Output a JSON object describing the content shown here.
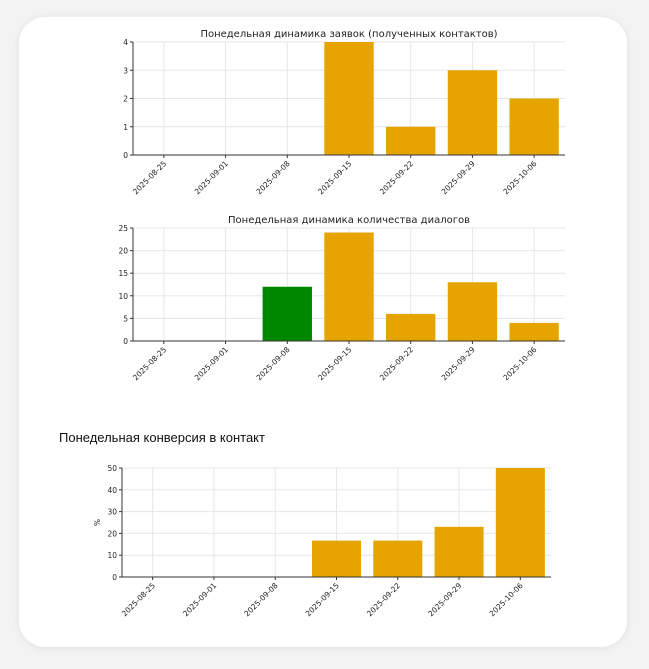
{
  "section_title": "Понедельная конверсия в контакт",
  "colors": {
    "bar": "#E6A400",
    "bar_highlight": "#008700"
  },
  "chart_data": [
    {
      "type": "bar",
      "title": "Понедельная динамика заявок (полученных контактов)",
      "categories": [
        "2025-08-25",
        "2025-09-01",
        "2025-09-08",
        "2025-09-15",
        "2025-09-22",
        "2025-09-29",
        "2025-10-06"
      ],
      "values": [
        0,
        0,
        0,
        4,
        1,
        3,
        2
      ],
      "ylim": [
        0,
        4
      ],
      "yticks": [
        0,
        1,
        2,
        3,
        4
      ],
      "xlabel": "",
      "ylabel": "",
      "grid": true
    },
    {
      "type": "bar",
      "title": "Понедельная динамика количества диалогов",
      "categories": [
        "2025-08-25",
        "2025-09-01",
        "2025-09-08",
        "2025-09-15",
        "2025-09-22",
        "2025-09-29",
        "2025-10-06"
      ],
      "values": [
        0,
        0,
        12,
        24,
        6,
        13,
        4
      ],
      "bar_colors": [
        "#E6A400",
        "#E6A400",
        "#008700",
        "#E6A400",
        "#E6A400",
        "#E6A400",
        "#E6A400"
      ],
      "ylim": [
        0,
        25
      ],
      "yticks": [
        0,
        5,
        10,
        15,
        20,
        25
      ],
      "xlabel": "",
      "ylabel": "",
      "grid": true
    },
    {
      "type": "bar",
      "title": "",
      "categories": [
        "2025-08-25",
        "2025-09-01",
        "2025-09-08",
        "2025-09-15",
        "2025-09-22",
        "2025-09-29",
        "2025-10-06"
      ],
      "values": [
        0,
        0,
        0,
        16.7,
        16.7,
        23,
        50
      ],
      "ylim": [
        0,
        50
      ],
      "yticks": [
        0,
        10,
        20,
        30,
        40,
        50
      ],
      "xlabel": "",
      "ylabel": "%",
      "grid": true
    }
  ]
}
